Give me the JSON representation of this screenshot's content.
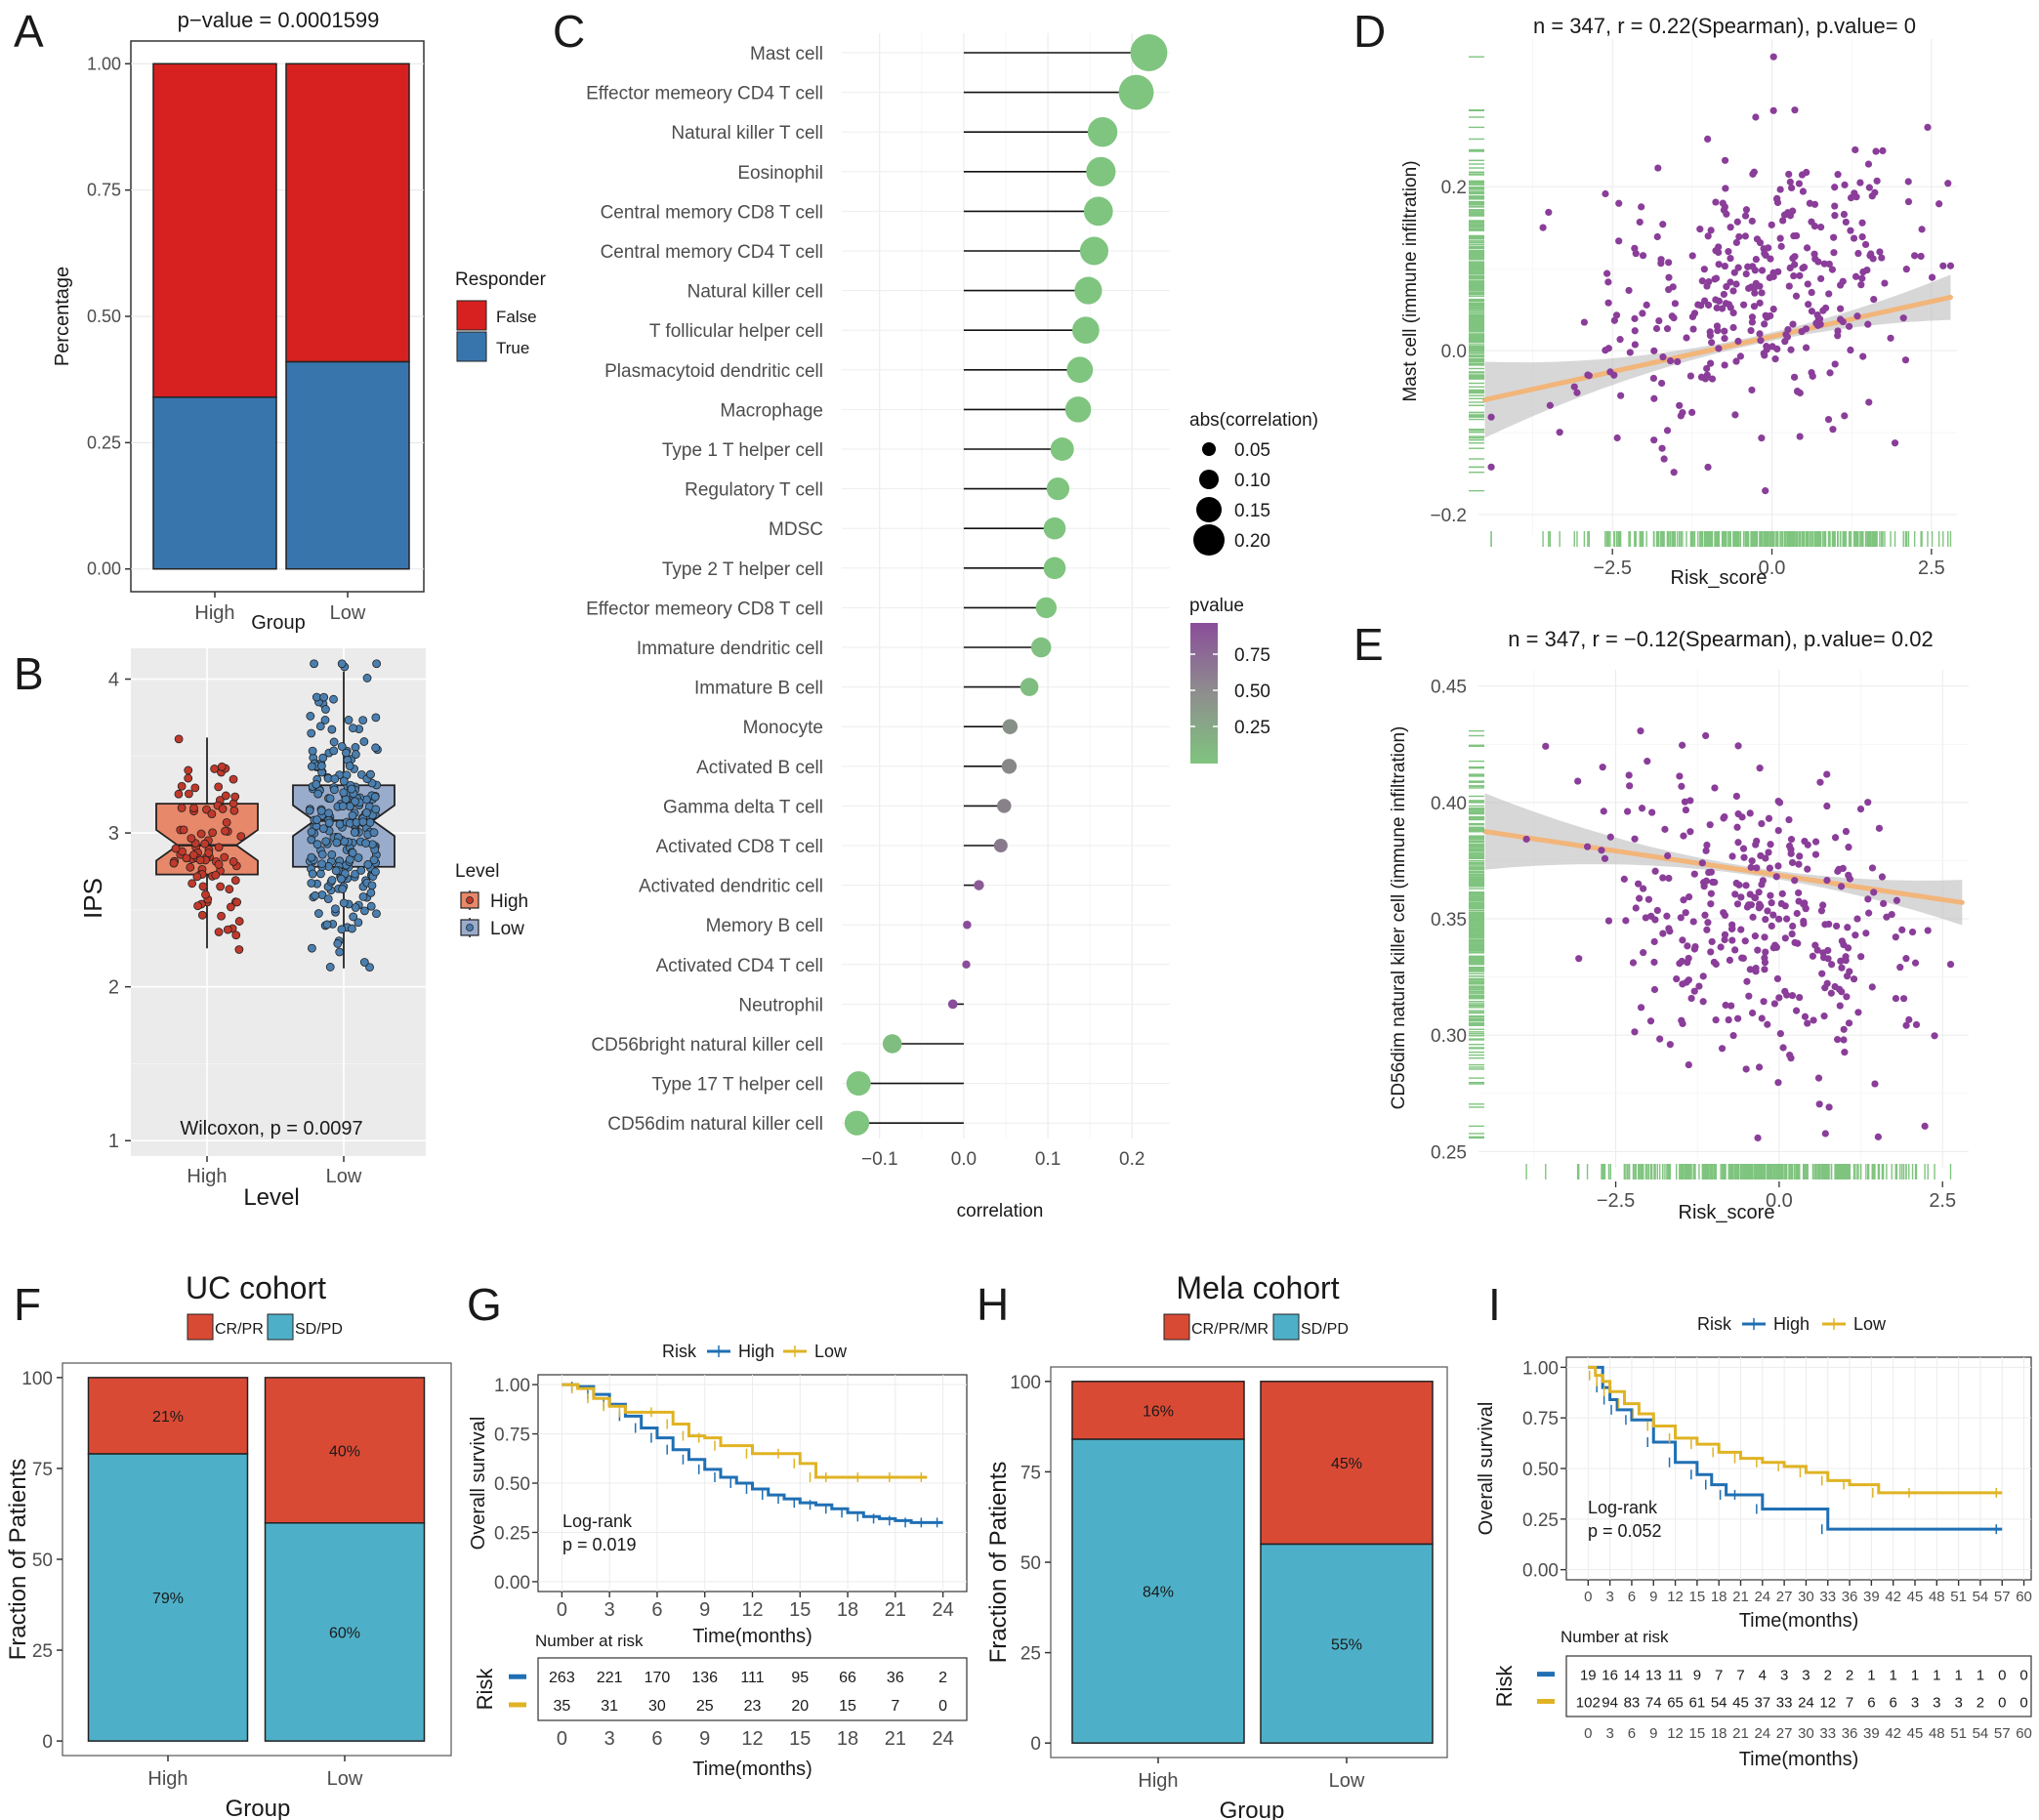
{
  "colors": {
    "false_red": "#d62120",
    "true_blue": "#3875ad",
    "high_salmon": "#e8886a",
    "low_steel": "#9aaccb",
    "crpr_red": "#d94a35",
    "sdpd_cyan": "#4eb0c8",
    "km_high": "#1f6fb4",
    "km_low": "#e0b324",
    "scatter_purple": "#8a3d99",
    "rug_green": "#7fc47f",
    "trend_orange": "#f2b57a",
    "pval_top": "#8a4d9a",
    "pval_bottom": "#7fc47f",
    "panel_bg": "#ebebeb",
    "grid": "#ffffff"
  },
  "panel_letters": [
    "A",
    "B",
    "C",
    "D",
    "E",
    "F",
    "G",
    "H",
    "I"
  ],
  "chart_data": [
    {
      "id": "A",
      "type": "bar",
      "stacked": true,
      "title": "p−value = 0.0001599",
      "categories": [
        "High",
        "Low"
      ],
      "series": [
        {
          "name": "False",
          "values": [
            0.66,
            0.59
          ]
        },
        {
          "name": "True",
          "values": [
            0.34,
            0.41
          ]
        }
      ],
      "xlabel": "Group",
      "ylabel": "Percentage",
      "yticks": [
        "0.00",
        "0.25",
        "0.50",
        "0.75",
        "1.00"
      ],
      "ylim": [
        0,
        1
      ],
      "legend_title": "Responder",
      "legend": [
        "False",
        "True"
      ]
    },
    {
      "id": "B",
      "type": "box",
      "categories": [
        "High",
        "Low"
      ],
      "stats": [
        {
          "min": 2.25,
          "q1": 2.73,
          "median": 2.92,
          "q3": 3.19,
          "max": 3.62
        },
        {
          "min": 2.12,
          "q1": 2.78,
          "median": 3.08,
          "q3": 3.31,
          "max": 4.05
        }
      ],
      "xlabel": "Level",
      "ylabel": "IPS",
      "yticks": [
        "1",
        "2",
        "3",
        "4"
      ],
      "ylim": [
        0.9,
        4.2
      ],
      "annotation": "Wilcoxon, p = 0.0097",
      "legend_title": "Level",
      "legend": [
        "High",
        "Low"
      ]
    },
    {
      "id": "C",
      "type": "lollipop",
      "categories": [
        "Mast cell",
        "Effector memeory CD4 T cell",
        "Natural killer T cell",
        "Eosinophil",
        "Central memory CD8 T cell",
        "Central memory CD4 T cell",
        "Natural killer cell",
        "T follicular helper cell",
        "Plasmacytoid dendritic cell",
        "Macrophage",
        "Type 1 T helper cell",
        "Regulatory T cell",
        "MDSC",
        "Type 2 T helper cell",
        "Effector memeory CD8 T cell",
        "Immature dendritic cell",
        "Immature  B cell",
        "Monocyte",
        "Activated B cell",
        "Gamma delta T cell",
        "Activated CD8 T cell",
        "Activated dendritic cell",
        "Memory B cell",
        "Activated CD4 T cell",
        "Neutrophil",
        "CD56bright natural killer cell",
        "Type 17 T helper cell",
        "CD56dim natural killer cell"
      ],
      "values": [
        0.22,
        0.205,
        0.165,
        0.163,
        0.16,
        0.155,
        0.148,
        0.145,
        0.138,
        0.136,
        0.117,
        0.112,
        0.108,
        0.108,
        0.098,
        0.092,
        0.078,
        0.055,
        0.054,
        0.048,
        0.044,
        0.018,
        0.004,
        0.003,
        -0.013,
        -0.085,
        -0.125,
        -0.127
      ],
      "pvalues": [
        0.01,
        0.01,
        0.01,
        0.01,
        0.01,
        0.01,
        0.01,
        0.01,
        0.01,
        0.01,
        0.02,
        0.02,
        0.03,
        0.03,
        0.05,
        0.08,
        0.1,
        0.4,
        0.45,
        0.5,
        0.55,
        0.75,
        0.9,
        0.92,
        0.85,
        0.1,
        0.02,
        0.02
      ],
      "xlabel": "correlation",
      "xticks": [
        -0.1,
        0.0,
        0.1,
        0.2
      ],
      "xlim": [
        -0.145,
        0.245
      ],
      "xtick_labels": [
        "−0.1",
        "0.0",
        "0.1",
        "0.2"
      ],
      "size_legend_title": "abs(correlation)",
      "size_legend": [
        "0.05",
        "0.10",
        "0.15",
        "0.20"
      ],
      "color_legend_title": "pvalue",
      "color_legend": [
        "0.75",
        "0.50",
        "0.25"
      ]
    },
    {
      "id": "D",
      "type": "scatter",
      "title": "n = 347, r = 0.22(Spearman), p.value= 0",
      "xlabel": "Risk_score",
      "ylabel": "Mast cell (immune infiltration)",
      "xticks": [
        -2.5,
        0.0,
        2.5
      ],
      "xtick_labels": [
        "−2.5",
        "0.0",
        "2.5"
      ],
      "yticks": [
        -0.2,
        0.0,
        0.2
      ],
      "ytick_labels": [
        "−0.2",
        "0.0",
        "0.2"
      ],
      "xlim": [
        -4.6,
        2.9
      ],
      "ylim": [
        -0.225,
        0.38
      ],
      "x_range": [
        -4.4,
        2.8
      ],
      "y_range": [
        -0.21,
        0.36
      ],
      "trend": {
        "x0": -4.5,
        "y0": -0.06,
        "x1": 2.8,
        "y1": 0.065
      },
      "n_points": 347
    },
    {
      "id": "E",
      "type": "scatter",
      "title": "n = 347, r = −0.12(Spearman), p.value= 0.02",
      "xlabel": "Risk_score",
      "ylabel": "CD56dim natural killer cell (immune infiltration)",
      "xticks": [
        -2.5,
        0.0,
        2.5
      ],
      "xtick_labels": [
        "−2.5",
        "0.0",
        "2.5"
      ],
      "yticks": [
        0.25,
        0.3,
        0.35,
        0.4,
        0.45
      ],
      "ytick_labels": [
        "0.25",
        "0.30",
        "0.35",
        "0.40",
        "0.45"
      ],
      "xlim": [
        -4.6,
        2.9
      ],
      "ylim": [
        0.243,
        0.457
      ],
      "x_range": [
        -4.4,
        2.8
      ],
      "y_range": [
        0.245,
        0.45
      ],
      "trend": {
        "x0": -4.5,
        "y0": 0.3875,
        "x1": 2.8,
        "y1": 0.357
      },
      "n_points": 347
    },
    {
      "id": "F",
      "type": "bar",
      "stacked": true,
      "title": "UC cohort",
      "categories": [
        "High",
        "Low"
      ],
      "series": [
        {
          "name": "SD/PD",
          "values": [
            79,
            60
          ],
          "labels": [
            "79%",
            "60%"
          ]
        },
        {
          "name": "CR/PR",
          "values": [
            21,
            40
          ],
          "labels": [
            "21%",
            "40%"
          ]
        }
      ],
      "xlabel": "Group",
      "ylabel": "Fraction of Patients",
      "yticks": [
        "0",
        "25",
        "50",
        "75",
        "100"
      ],
      "ylim": [
        0,
        100
      ],
      "legend": [
        "CR/PR",
        "SD/PD"
      ]
    },
    {
      "id": "G",
      "type": "line",
      "subtype": "kaplan-meier",
      "title": "UC cohort",
      "legend_title": "Risk",
      "legend": [
        "High",
        "Low"
      ],
      "series": [
        {
          "name": "High",
          "x": [
            0,
            1,
            2,
            3,
            4,
            5,
            6,
            7,
            8,
            9,
            10,
            11,
            12,
            13,
            14,
            15,
            16,
            17,
            18,
            19,
            20,
            21,
            22,
            23,
            24
          ],
          "y": [
            1.0,
            0.99,
            0.95,
            0.9,
            0.84,
            0.78,
            0.73,
            0.67,
            0.62,
            0.57,
            0.53,
            0.5,
            0.47,
            0.44,
            0.42,
            0.4,
            0.39,
            0.37,
            0.35,
            0.33,
            0.32,
            0.31,
            0.3,
            0.3,
            0.3
          ]
        },
        {
          "name": "Low",
          "x": [
            0,
            1,
            2,
            3,
            4,
            6,
            7,
            8,
            9,
            10,
            12,
            14,
            15,
            16,
            17,
            19,
            21,
            23
          ],
          "y": [
            1.0,
            0.98,
            0.93,
            0.89,
            0.86,
            0.86,
            0.8,
            0.74,
            0.73,
            0.69,
            0.65,
            0.65,
            0.6,
            0.53,
            0.53,
            0.53,
            0.53,
            0.53
          ]
        }
      ],
      "xlabel": "Time(months)",
      "ylabel": "Overall survival",
      "xticks": [
        "0",
        "3",
        "6",
        "9",
        "12",
        "15",
        "18",
        "21",
        "24"
      ],
      "xlim": [
        0,
        24
      ],
      "yticks": [
        "0.00",
        "0.25",
        "0.50",
        "0.75",
        "1.00"
      ],
      "ylim": [
        0,
        1
      ],
      "annotation": [
        "Log-rank",
        "p = 0.019"
      ],
      "risk_table_title": "Number at risk",
      "risk_table_ylabel": "Risk",
      "risk_table": [
        [
          "263",
          "221",
          "170",
          "136",
          "111",
          "95",
          "66",
          "36",
          "2"
        ],
        [
          "35",
          "31",
          "30",
          "25",
          "23",
          "20",
          "15",
          "7",
          "0"
        ]
      ]
    },
    {
      "id": "H",
      "type": "bar",
      "stacked": true,
      "title": "Mela cohort",
      "categories": [
        "High",
        "Low"
      ],
      "series": [
        {
          "name": "SD/PD",
          "values": [
            84,
            55
          ],
          "labels": [
            "84%",
            "55%"
          ]
        },
        {
          "name": "CR/PR/MR",
          "values": [
            16,
            45
          ],
          "labels": [
            "16%",
            "45%"
          ]
        }
      ],
      "xlabel": "Group",
      "ylabel": "Fraction of Patients",
      "yticks": [
        "0",
        "25",
        "50",
        "75",
        "100"
      ],
      "ylim": [
        0,
        100
      ],
      "legend": [
        "CR/PR/MR",
        "SD/PD"
      ]
    },
    {
      "id": "I",
      "type": "line",
      "subtype": "kaplan-meier",
      "title": "Mela cohort",
      "legend_title": "Risk",
      "legend": [
        "High",
        "Low"
      ],
      "series": [
        {
          "name": "High",
          "x": [
            0,
            2,
            3,
            4,
            6,
            9,
            12,
            15,
            17,
            19,
            21,
            24,
            33,
            57
          ],
          "y": [
            1.0,
            0.9,
            0.84,
            0.79,
            0.74,
            0.63,
            0.53,
            0.47,
            0.42,
            0.37,
            0.37,
            0.3,
            0.2,
            0.2
          ]
        },
        {
          "name": "Low",
          "x": [
            0,
            1,
            2,
            3,
            5,
            7,
            9,
            12,
            15,
            18,
            21,
            24,
            27,
            30,
            33,
            36,
            40,
            45,
            57
          ],
          "y": [
            1.0,
            0.96,
            0.93,
            0.88,
            0.82,
            0.77,
            0.71,
            0.65,
            0.62,
            0.58,
            0.55,
            0.53,
            0.51,
            0.48,
            0.44,
            0.42,
            0.38,
            0.38,
            0.38
          ]
        }
      ],
      "xlabel": "Time(months)",
      "ylabel": "Overall survival",
      "xticks": [
        "0",
        "3",
        "6",
        "9",
        "12",
        "15",
        "18",
        "21",
        "24",
        "27",
        "30",
        "33",
        "36",
        "39",
        "42",
        "45",
        "48",
        "51",
        "54",
        "57",
        "60"
      ],
      "xlim": [
        0,
        60
      ],
      "yticks": [
        "0.00",
        "0.25",
        "0.50",
        "0.75",
        "1.00"
      ],
      "ylim": [
        0,
        1
      ],
      "annotation": [
        "Log-rank",
        "p = 0.052"
      ],
      "risk_table_title": "Number at risk",
      "risk_table_ylabel": "Risk",
      "risk_table": [
        [
          "19",
          "16",
          "14",
          "13",
          "11",
          "9",
          "7",
          "7",
          "4",
          "3",
          "3",
          "2",
          "2",
          "1",
          "1",
          "1",
          "1",
          "1",
          "1",
          "0",
          "0"
        ],
        [
          "102",
          "94",
          "83",
          "74",
          "65",
          "61",
          "54",
          "45",
          "37",
          "33",
          "24",
          "12",
          "7",
          "6",
          "6",
          "3",
          "3",
          "3",
          "2",
          "0",
          "0"
        ]
      ]
    }
  ]
}
